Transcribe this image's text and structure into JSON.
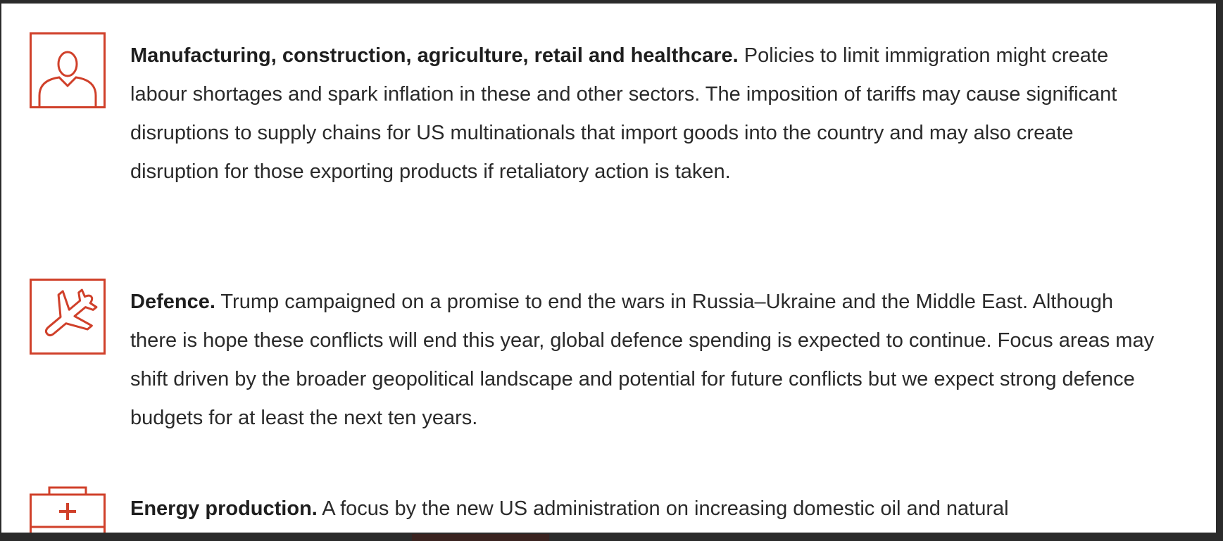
{
  "items": [
    {
      "icon": "person-icon",
      "heading": "Manufacturing, construction, agriculture, retail and healthcare.",
      "body": " Policies to limit immigration might create labour shortages and spark inflation in these and other sectors. The imposition of tariffs may cause significant disruptions to supply chains for US multinationals that import goods into the country and may also create disruption for those exporting products if retaliatory action is taken."
    },
    {
      "icon": "airplane-icon",
      "heading": "Defence.",
      "body": " Trump campaigned on a promise to end the wars in Russia–Ukraine and the Middle East. Although there is hope these conflicts will end this year, global defence spending is expected to continue. Focus areas may shift driven by the broader geopolitical landscape and potential for future conflicts but we expect strong defence budgets for at least the next ten years."
    },
    {
      "icon": "first-aid-kit-icon",
      "heading": "Energy production.",
      "body": " A focus by the new US administration on increasing domestic oil and natural"
    }
  ],
  "colors": {
    "accent": "#d0402a",
    "text": "#2a2a2a",
    "background": "#ffffff",
    "frame": "#2b2b2b"
  }
}
